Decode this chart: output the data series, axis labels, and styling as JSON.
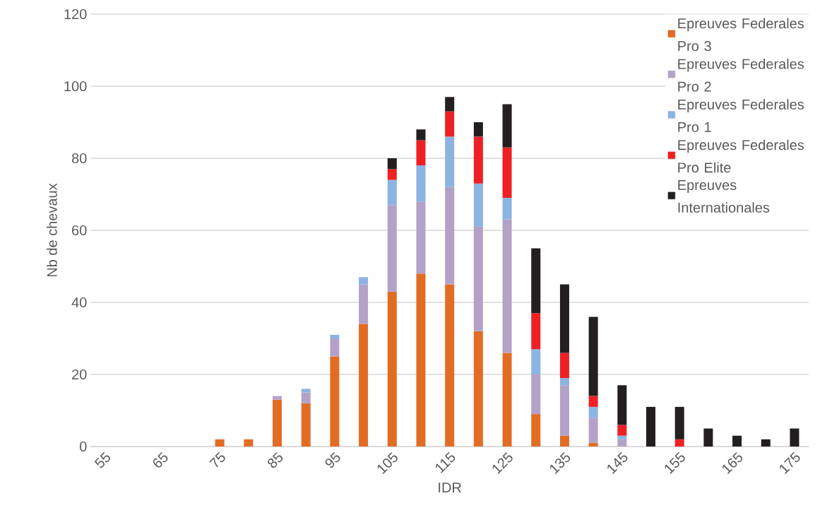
{
  "chart_data": {
    "type": "bar",
    "stacked": true,
    "xlabel": "IDR",
    "ylabel": "Nb de chevaux",
    "categories": [
      "55",
      null,
      "65",
      null,
      "75",
      null,
      "85",
      null,
      "95",
      null,
      "105",
      null,
      "115",
      null,
      "125",
      null,
      "135",
      null,
      "145",
      null,
      "155",
      null,
      "165",
      null,
      "175"
    ],
    "series": [
      {
        "name": "Epreuves Federales Pro 3",
        "color": "#e36c25",
        "values": [
          0,
          0,
          0,
          0,
          2,
          2,
          13,
          12,
          25,
          34,
          43,
          48,
          45,
          32,
          26,
          9,
          3,
          1,
          0,
          0,
          0,
          0,
          0,
          0,
          0
        ]
      },
      {
        "name": "Epreuves Federales Pro 2",
        "color": "#b3a2c7",
        "values": [
          0,
          0,
          0,
          0,
          0,
          0,
          1,
          3,
          5,
          11,
          24,
          20,
          27,
          29,
          37,
          11,
          14,
          7,
          2,
          0,
          0,
          0,
          0,
          0,
          0
        ]
      },
      {
        "name": "Epreuves Federales Pro 1",
        "color": "#8db3e2",
        "values": [
          0,
          0,
          0,
          0,
          0,
          0,
          0,
          1,
          1,
          2,
          7,
          10,
          14,
          12,
          6,
          7,
          2,
          3,
          1,
          0,
          0,
          0,
          0,
          0,
          0
        ]
      },
      {
        "name": "Epreuves Federales Pro Elite",
        "color": "#ee2024",
        "values": [
          0,
          0,
          0,
          0,
          0,
          0,
          0,
          0,
          0,
          0,
          3,
          7,
          7,
          13,
          14,
          10,
          7,
          3,
          3,
          0,
          2,
          0,
          0,
          0,
          0
        ]
      },
      {
        "name": "Epreuves Internationales",
        "color": "#231f20",
        "values": [
          0,
          0,
          0,
          0,
          0,
          0,
          0,
          0,
          0,
          0,
          3,
          3,
          4,
          4,
          12,
          18,
          19,
          22,
          11,
          11,
          9,
          5,
          3,
          2,
          5
        ]
      }
    ],
    "ylim": [
      0,
      120
    ],
    "yticks": [
      0,
      20,
      40,
      60,
      80,
      100,
      120
    ],
    "grid": "y",
    "legend": "top right"
  }
}
